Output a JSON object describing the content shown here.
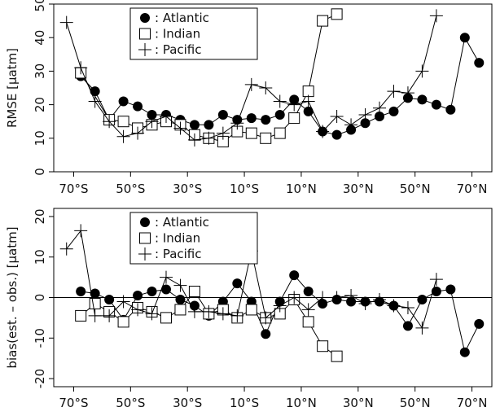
{
  "chart_data": [
    {
      "type": "scatter",
      "ylabel": "RMSE [µatm]",
      "ylim": [
        0,
        50
      ],
      "yticks": [
        0,
        10,
        20,
        30,
        40,
        50
      ],
      "xlim": [
        -77,
        77
      ],
      "xticks": [
        -70,
        -50,
        -30,
        -10,
        10,
        30,
        50,
        70
      ],
      "xtick_labels": [
        "70°S",
        "50°S",
        "30°S",
        "10°S",
        "10°N",
        "30°N",
        "50°N",
        "70°N"
      ],
      "legend": {
        "position": "top-left",
        "entries": [
          ": Atlantic",
          ": Indian",
          ": Pacific"
        ]
      },
      "zero_line": false,
      "series": [
        {
          "name": ": Atlantic",
          "marker": "filled-circle",
          "connected": true,
          "x": [
            -67.5,
            -62.5,
            -57.5,
            -52.5,
            -47.5,
            -42.5,
            -37.5,
            -32.5,
            -27.5,
            -22.5,
            -17.5,
            -12.5,
            -7.5,
            -2.5,
            2.5,
            7.5,
            12.5,
            17.5,
            22.5,
            27.5,
            32.5,
            37.5,
            42.5,
            47.5,
            52.5,
            57.5,
            62.5,
            67.5,
            72.5
          ],
          "y": [
            28.5,
            24,
            15.5,
            21,
            19.5,
            17,
            17,
            15.5,
            14,
            14,
            17,
            15.5,
            16,
            15.5,
            17,
            21.5,
            18,
            12,
            11,
            12.5,
            14.5,
            16.5,
            18,
            22,
            21.5,
            20,
            18.5,
            40,
            32.5
          ]
        },
        {
          "name": ": Indian",
          "marker": "open-square",
          "connected": true,
          "x": [
            -67.5,
            -57.5,
            -52.5,
            -47.5,
            -42.5,
            -37.5,
            -32.5,
            -27.5,
            -22.5,
            -17.5,
            -12.5,
            -7.5,
            -2.5,
            2.5,
            7.5,
            12.5,
            17.5,
            22.5
          ],
          "y": [
            29.5,
            15.5,
            15,
            13,
            14,
            15,
            14,
            11,
            10,
            9,
            12,
            11.5,
            10,
            11.5,
            16,
            24,
            45,
            47
          ]
        },
        {
          "name": ": Pacific",
          "marker": "plus",
          "connected": true,
          "x": [
            -72.5,
            -67.5,
            -62.5,
            -57.5,
            -52.5,
            -47.5,
            -42.5,
            -37.5,
            -32.5,
            -27.5,
            -22.5,
            -17.5,
            -12.5,
            -7.5,
            -2.5,
            2.5,
            7.5,
            12.5,
            17.5,
            22.5,
            27.5,
            32.5,
            37.5,
            42.5,
            47.5,
            52.5,
            57.5
          ],
          "y": [
            44.5,
            31,
            21,
            15,
            10.5,
            11.5,
            15,
            16.5,
            13,
            9.5,
            10,
            11.5,
            14.5,
            26,
            25,
            21,
            20,
            21,
            12,
            16.5,
            14,
            17,
            19,
            24,
            23.5,
            30,
            46.5
          ]
        }
      ]
    },
    {
      "type": "scatter",
      "ylabel": "bias(est. – obs.) [µatm]",
      "ylim": [
        -22,
        22
      ],
      "yticks": [
        -20,
        -10,
        0,
        10,
        20
      ],
      "xlim": [
        -77,
        77
      ],
      "xticks": [
        -70,
        -50,
        -30,
        -10,
        10,
        30,
        50,
        70
      ],
      "xtick_labels": [
        "70°S",
        "50°S",
        "30°S",
        "10°S",
        "10°N",
        "30°N",
        "50°N",
        "70°N"
      ],
      "legend": {
        "position": "top-left",
        "entries": [
          ": Atlantic",
          ": Indian",
          ": Pacific"
        ]
      },
      "zero_line": true,
      "series": [
        {
          "name": ": Atlantic",
          "marker": "filled-circle",
          "connected": true,
          "x": [
            -67.5,
            -62.5,
            -57.5,
            -52.5,
            -47.5,
            -42.5,
            -37.5,
            -32.5,
            -27.5,
            -22.5,
            -17.5,
            -12.5,
            -7.5,
            -2.5,
            2.5,
            7.5,
            12.5,
            17.5,
            22.5,
            27.5,
            32.5,
            37.5,
            42.5,
            47.5,
            52.5,
            57.5,
            62.5,
            67.5,
            72.5
          ],
          "y": [
            1.5,
            1,
            -0.5,
            -5.5,
            0.5,
            1.5,
            2,
            -0.5,
            -2,
            -4.5,
            -1,
            3.5,
            -1,
            -9,
            -1,
            5.5,
            1.5,
            -1.5,
            -0.5,
            -1,
            -1,
            -1,
            -2,
            -7,
            -0.5,
            1.5,
            2,
            -13.5,
            -6.5
          ]
        },
        {
          "name": ": Indian",
          "marker": "open-square",
          "connected": true,
          "x": [
            -67.5,
            -62.5,
            -57.5,
            -52.5,
            -47.5,
            -42.5,
            -37.5,
            -32.5,
            -27.5,
            -22.5,
            -17.5,
            -12.5,
            -7.5,
            -2.5,
            2.5,
            7.5,
            12.5,
            17.5,
            22.5
          ],
          "y": [
            -4.5,
            -1.5,
            -3.5,
            -6,
            -2.5,
            -3.5,
            -5,
            -3,
            1.5,
            -4,
            -3,
            -5,
            -3,
            -5,
            -4,
            -0.5,
            -6,
            -12,
            -14.5
          ]
        },
        {
          "name": ": Pacific",
          "marker": "plus",
          "connected": true,
          "x": [
            -72.5,
            -67.5,
            -62.5,
            -57.5,
            -52.5,
            -47.5,
            -42.5,
            -37.5,
            -32.5,
            -27.5,
            -22.5,
            -17.5,
            -12.5,
            -7.5,
            -2.5,
            2.5,
            7.5,
            12.5,
            17.5,
            22.5,
            27.5,
            32.5,
            37.5,
            42.5,
            47.5,
            52.5,
            57.5
          ],
          "y": [
            12,
            16.5,
            -4.5,
            -4.5,
            -1,
            -3,
            -4,
            5,
            3,
            -3.5,
            -3.5,
            -4,
            -4.5,
            11.5,
            -5,
            -2,
            0,
            -3,
            0,
            0,
            0.5,
            -1.5,
            -0.5,
            -2,
            -2.5,
            -7.5,
            4.5
          ]
        }
      ]
    }
  ]
}
